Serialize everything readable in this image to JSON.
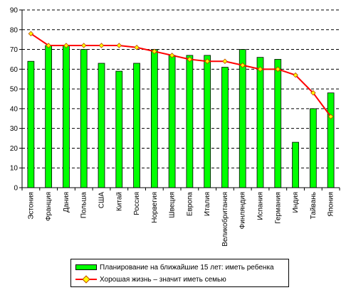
{
  "chart_data": {
    "type": "bar",
    "categories": [
      "Эстония",
      "Франция",
      "Дания",
      "Польша",
      "США",
      "Китай",
      "Россия",
      "Норвегия",
      "Швеция",
      "Европа",
      "Италия",
      "Великобритания",
      "Финляндия",
      "Испания",
      "Германия",
      "Индия",
      "Тайвань",
      "Япония"
    ],
    "series": [
      {
        "name": "Планирование на ближайшие 15 лет: иметь ребенка",
        "type": "bar",
        "color": "#00ff00",
        "values": [
          64,
          72,
          72,
          70,
          63,
          59,
          63,
          70,
          67,
          67,
          67,
          61,
          70,
          66,
          65,
          23,
          40,
          48
        ]
      },
      {
        "name": "Хорошая жизнь – значит иметь семью",
        "type": "line",
        "color": "#ff0000",
        "marker_color": "#ffff00",
        "values": [
          78,
          72,
          72,
          72,
          72,
          72,
          71,
          69,
          67,
          65,
          64,
          64,
          62,
          60,
          60,
          57,
          48,
          36
        ]
      }
    ],
    "yticks": [
      0,
      10,
      20,
      30,
      40,
      50,
      60,
      70,
      80,
      90
    ],
    "ylim": [
      0,
      90
    ],
    "grid": "horizontal-dashed",
    "legend_position": "bottom"
  }
}
